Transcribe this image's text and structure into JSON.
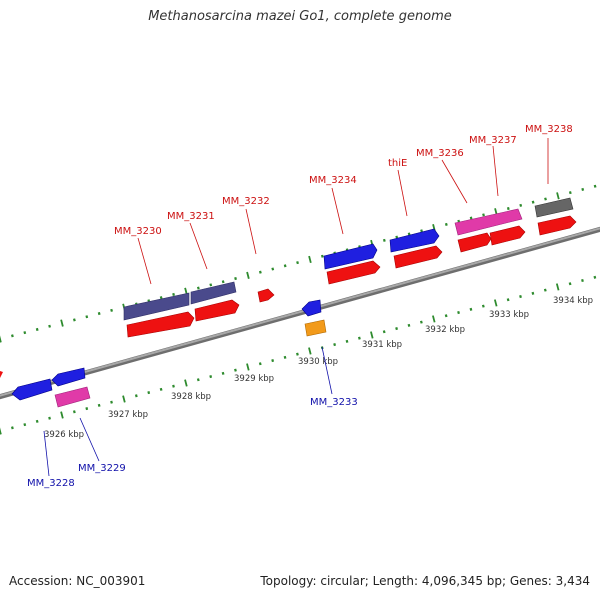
{
  "title": "Methanosarcina mazei Go1, complete genome",
  "accession": "Accession: NC_003901",
  "info": "Topology: circular; Length: 4,096,345 bp; Genes: 3,434",
  "colors": {
    "backbone": "#8a8a8a",
    "tick": "#2e8b2e",
    "label_top": "#cc1111",
    "label_bottom": "#1111aa",
    "gene_forward": "#1f1fe0",
    "gene_reverse": "#ee1111",
    "gene_purple": "#4a4a8c",
    "gene_pink": "#e03aa8",
    "gene_orange": "#f29a1a",
    "gene_gray": "#666666"
  },
  "scale_labels": [
    "3926 kbp",
    "3927 kbp",
    "3928 kbp",
    "3929 kbp",
    "3930 kbp",
    "3931 kbp",
    "3932 kbp",
    "3933 kbp",
    "3934 kbp"
  ],
  "top_labels": [
    "MM_3230",
    "MM_3231",
    "MM_3232",
    "MM_3234",
    "thiE",
    "MM_3236",
    "MM_3237",
    "MM_3238"
  ],
  "bottom_labels": [
    "MM_3228",
    "MM_3229",
    "MM_3233"
  ]
}
